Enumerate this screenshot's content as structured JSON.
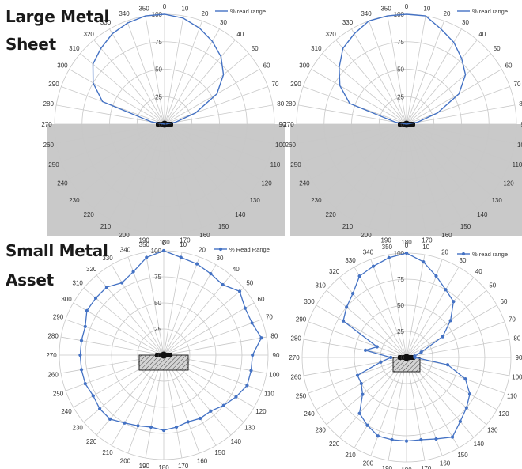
{
  "headings": {
    "top_line1": "Large Metal",
    "top_line2": "Sheet",
    "bottom_line1": "Small Metal",
    "bottom_line2": "Asset"
  },
  "theme": {
    "series_color": "#4472c4",
    "grid_color": "#c8c8c8",
    "shade_color": "#c9c9c9",
    "hatch_color": "#444444"
  },
  "chart_data": [
    {
      "type": "polar-line",
      "series_name": "% read range",
      "markers": false,
      "shaded_lower_half": true,
      "metal_block": "none",
      "r_range": [
        0,
        100
      ],
      "r_ticks": [
        "0",
        "25",
        "50",
        "75",
        "100"
      ],
      "angle_ticks": [
        "0",
        "10",
        "20",
        "30",
        "40",
        "50",
        "60",
        "70",
        "80",
        "90",
        "100",
        "110",
        "120",
        "130",
        "140",
        "150",
        "160",
        "170",
        "180",
        "190",
        "200",
        "210",
        "220",
        "230",
        "240",
        "250",
        "260",
        "270",
        "280",
        "290",
        "300",
        "310",
        "320",
        "330",
        "340",
        "350"
      ],
      "legend_position": "top-right",
      "series": [
        {
          "name": "% read range",
          "angles": [
            0,
            10,
            20,
            30,
            40,
            50,
            60,
            70,
            80,
            90,
            270,
            280,
            290,
            300,
            310,
            320,
            330,
            340,
            350
          ],
          "values": [
            100,
            98,
            93,
            87,
            80,
            70,
            55,
            30,
            10,
            1,
            0,
            12,
            60,
            75,
            85,
            90,
            95,
            98,
            100
          ]
        }
      ]
    },
    {
      "type": "polar-line",
      "series_name": "% read range",
      "markers": false,
      "shaded_lower_half": true,
      "metal_block": "none",
      "r_range": [
        0,
        100
      ],
      "r_ticks": [
        "0",
        "25",
        "50",
        "75",
        "100"
      ],
      "angle_ticks": [
        "0",
        "10",
        "20",
        "30",
        "40",
        "50",
        "60",
        "70",
        "80",
        "90",
        "100",
        "110",
        "120",
        "130",
        "140",
        "150",
        "160",
        "170",
        "180",
        "190",
        "200",
        "210",
        "220",
        "230",
        "240",
        "250",
        "260",
        "270",
        "280",
        "290",
        "300",
        "310",
        "320",
        "330",
        "340",
        "350"
      ],
      "legend_position": "top-right",
      "series": [
        {
          "name": "% read range",
          "angles": [
            0,
            10,
            20,
            30,
            40,
            50,
            60,
            70,
            80,
            90,
            270,
            280,
            290,
            300,
            310,
            320,
            330,
            340,
            350
          ],
          "values": [
            100,
            100,
            92,
            86,
            78,
            70,
            55,
            30,
            10,
            0,
            0,
            10,
            55,
            70,
            80,
            90,
            95,
            100,
            100
          ]
        }
      ]
    },
    {
      "type": "polar-line",
      "series_name": "% Read Range",
      "markers": true,
      "shaded_lower_half": false,
      "metal_block": "hatched",
      "r_range": [
        0,
        100
      ],
      "r_ticks": [
        "0",
        "25",
        "50",
        "75",
        "100"
      ],
      "angle_ticks": [
        "0",
        "10",
        "20",
        "30",
        "40",
        "50",
        "60",
        "70",
        "80",
        "90",
        "100",
        "110",
        "120",
        "130",
        "140",
        "150",
        "160",
        "170",
        "180",
        "190",
        "200",
        "210",
        "220",
        "230",
        "240",
        "250",
        "260",
        "270",
        "280",
        "290",
        "300",
        "310",
        "320",
        "330",
        "340",
        "350"
      ],
      "legend_position": "top-right",
      "series": [
        {
          "name": "% Read Range",
          "angles": [
            0,
            10,
            20,
            30,
            40,
            50,
            60,
            70,
            80,
            90,
            100,
            110,
            120,
            130,
            140,
            150,
            160,
            170,
            180,
            190,
            200,
            210,
            220,
            230,
            240,
            250,
            260,
            270,
            280,
            290,
            300,
            310,
            320,
            330,
            340,
            350
          ],
          "values": [
            100,
            95,
            93,
            90,
            88,
            95,
            90,
            90,
            95,
            85,
            85,
            85,
            80,
            75,
            70,
            70,
            68,
            70,
            72,
            70,
            72,
            75,
            80,
            80,
            78,
            80,
            80,
            80,
            80,
            80,
            85,
            85,
            85,
            80,
            85,
            95
          ]
        }
      ]
    },
    {
      "type": "polar-line",
      "series_name": "% read range",
      "markers": true,
      "shaded_lower_half": false,
      "metal_block": "hatched",
      "r_range": [
        0,
        100
      ],
      "r_ticks": [
        "0",
        "25",
        "50",
        "75",
        "100"
      ],
      "angle_ticks": [
        "0",
        "10",
        "20",
        "30",
        "40",
        "50",
        "60",
        "70",
        "80",
        "90",
        "100",
        "110",
        "120",
        "130",
        "140",
        "150",
        "160",
        "170",
        "180",
        "190",
        "200",
        "210",
        "220",
        "230",
        "240",
        "250",
        "260",
        "270",
        "280",
        "290",
        "300",
        "310",
        "320",
        "330",
        "340",
        "350"
      ],
      "legend_position": "top-right",
      "series": [
        {
          "name": "% read range",
          "angles": [
            0,
            10,
            20,
            30,
            40,
            50,
            60,
            70,
            80,
            90,
            100,
            110,
            120,
            130,
            140,
            150,
            160,
            170,
            180,
            190,
            200,
            210,
            220,
            230,
            240,
            250,
            260,
            270,
            280,
            290,
            300,
            310,
            320,
            330,
            340,
            350
          ],
          "values": [
            100,
            93,
            83,
            75,
            70,
            55,
            40,
            15,
            8,
            8,
            40,
            60,
            70,
            75,
            80,
            88,
            83,
            80,
            80,
            80,
            80,
            75,
            70,
            55,
            50,
            50,
            25,
            15,
            40,
            30,
            70,
            75,
            80,
            90,
            93,
            97
          ]
        }
      ]
    }
  ]
}
